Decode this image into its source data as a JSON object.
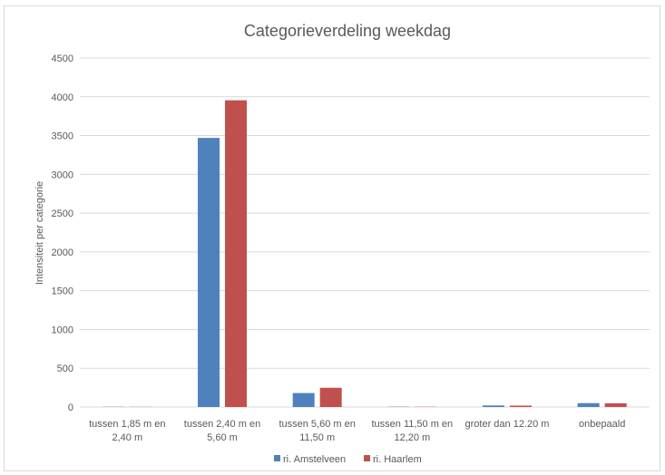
{
  "chart_data": {
    "type": "bar",
    "title": "Categorieverdeling weekdag",
    "xlabel": "",
    "ylabel": "Intensiteit per categorie",
    "ylim": [
      0,
      4500
    ],
    "yticks": [
      0,
      500,
      1000,
      1500,
      2000,
      2500,
      3000,
      3500,
      4000,
      4500
    ],
    "grid": true,
    "legend": "bottom",
    "categories": [
      [
        "tussen 1,85 m en",
        "2,40 m"
      ],
      [
        "tussen 2,40 m en",
        "5,60 m"
      ],
      [
        "tussen 5,60 m en",
        "11,50 m"
      ],
      [
        "tussen 11,50 m en",
        "12,20 m"
      ],
      [
        "groter dan 12.20 m"
      ],
      [
        "onbepaald"
      ]
    ],
    "series": [
      {
        "name": "ri. Amstelveen",
        "color": "#4f81bd",
        "values": [
          3,
          3470,
          180,
          4,
          20,
          50
        ]
      },
      {
        "name": "ri. Haarlem",
        "color": "#c0504d",
        "values": [
          2,
          3955,
          248,
          3,
          18,
          48
        ]
      }
    ]
  }
}
